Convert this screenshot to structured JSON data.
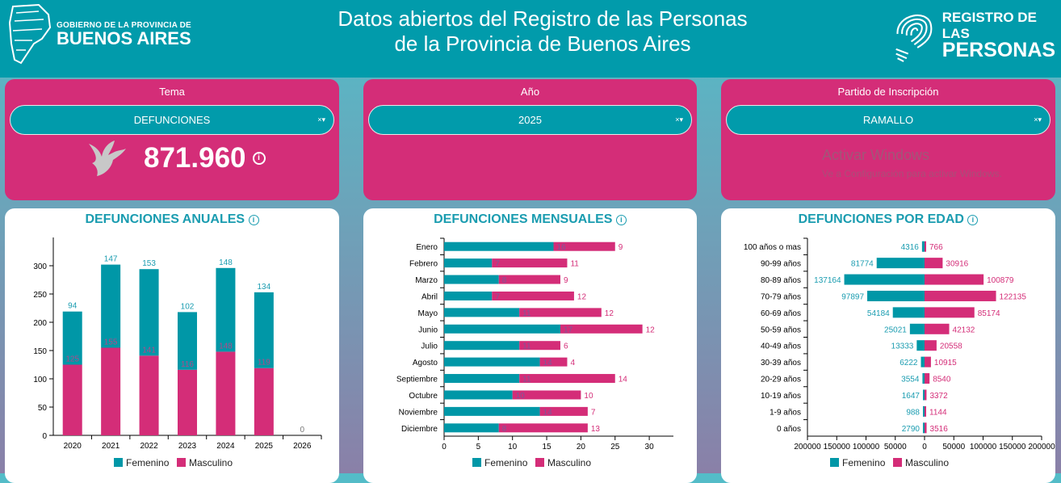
{
  "header": {
    "title_line1": "Datos abiertos del Registro de las Personas",
    "title_line2": "de la Provincia de Buenos Aires",
    "left_logo_small": "GOBIERNO DE LA PROVINCIA DE",
    "left_logo_big": "BUENOS AIRES",
    "right_logo_l1": "REGISTRO DE LAS",
    "right_logo_l2": "PERSONAS"
  },
  "filters": [
    {
      "label": "Tema",
      "value": "DEFUNCIONES"
    },
    {
      "label": "Año",
      "value": "2025"
    },
    {
      "label": "Partido de Inscripción",
      "value": "RAMALLO"
    }
  ],
  "filter_controls": "×▾",
  "kpi": {
    "value": "871.960",
    "icon": "dove-icon",
    "info": "i"
  },
  "colors": {
    "femenino": "#0097a7",
    "masculino": "#d42d78",
    "header": "#019bab"
  },
  "legend": [
    "Femenino",
    "Masculino"
  ],
  "watermark": {
    "l1": "Activar Windows",
    "l2": "Ve a Configuración para activar Windows."
  },
  "chart_data": [
    {
      "type": "bar",
      "stacked": true,
      "title": "DEFUNCIONES ANUALES",
      "categories": [
        "2020",
        "2021",
        "2022",
        "2023",
        "2024",
        "2025",
        "2026"
      ],
      "series": [
        {
          "name": "Masculino",
          "values": [
            125,
            155,
            141,
            116,
            148,
            119,
            0
          ]
        },
        {
          "name": "Femenino",
          "values": [
            94,
            147,
            153,
            102,
            148,
            134,
            0
          ]
        }
      ],
      "ylim": [
        0,
        350
      ],
      "yticks": [
        0,
        50,
        100,
        150,
        200,
        250,
        300
      ],
      "legend": "bottom"
    },
    {
      "type": "bar",
      "orientation": "horizontal",
      "stacked": true,
      "title": "DEFUNCIONES MENSUALES",
      "categories": [
        "Enero",
        "Febrero",
        "Marzo",
        "Abril",
        "Mayo",
        "Junio",
        "Julio",
        "Agosto",
        "Septiembre",
        "Octubre",
        "Noviembre",
        "Diciembre"
      ],
      "series": [
        {
          "name": "Femenino",
          "values": [
            16,
            7,
            8,
            7,
            11,
            17,
            11,
            14,
            11,
            10,
            14,
            8
          ]
        },
        {
          "name": "Masculino",
          "values": [
            9,
            11,
            9,
            12,
            12,
            12,
            6,
            4,
            14,
            10,
            7,
            13
          ]
        }
      ],
      "xlim": [
        0,
        33.5
      ],
      "xticks": [
        0,
        5,
        10,
        15,
        20,
        25,
        30
      ],
      "legend": "bottom"
    },
    {
      "type": "bar",
      "orientation": "horizontal",
      "diverging": true,
      "title": "DEFUNCIONES POR EDAD",
      "categories": [
        "100 años o mas",
        "90-99 años",
        "80-89 años",
        "70-79 años",
        "60-69 años",
        "50-59 años",
        "40-49 años",
        "30-39 años",
        "20-29 años",
        "10-19 años",
        "1-9 años",
        "0 años"
      ],
      "series": [
        {
          "name": "Femenino",
          "values": [
            4316,
            81774,
            137164,
            97897,
            54184,
            25021,
            13333,
            6222,
            3554,
            1647,
            988,
            2790
          ]
        },
        {
          "name": "Masculino",
          "values": [
            766,
            30916,
            100879,
            122135,
            85174,
            42132,
            20558,
            10915,
            8540,
            3372,
            1144,
            3516
          ]
        }
      ],
      "xlim": [
        -215000,
        215000
      ],
      "xticks": [
        "200000",
        "150000",
        "100000",
        "50000",
        "0",
        "50000",
        "100000",
        "150000",
        "200000"
      ],
      "legend": "bottom"
    }
  ]
}
